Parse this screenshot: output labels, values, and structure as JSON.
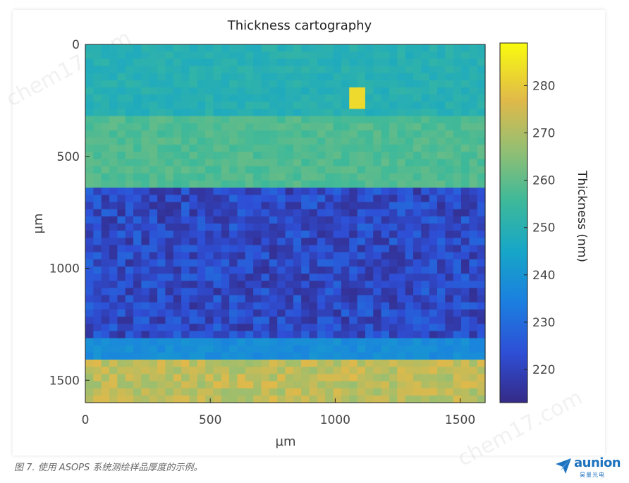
{
  "chart_data": {
    "type": "heatmap",
    "title": "Thickness cartography",
    "xlabel": "µm",
    "ylabel": "µm",
    "xlim": [
      0,
      1600
    ],
    "ylim": [
      0,
      1600
    ],
    "x_ticks": [
      "0",
      "500",
      "1000",
      "1500"
    ],
    "y_ticks": [
      "0",
      "500",
      "1000",
      "1500"
    ],
    "colorbar": {
      "label": "Thickness (nm)",
      "range": [
        213,
        289
      ],
      "ticks": [
        "220",
        "230",
        "240",
        "250",
        "260",
        "270",
        "280"
      ],
      "colormap": "parula"
    },
    "regions": [
      {
        "y_range": [
          0,
          320
        ],
        "thickness_nm": 250
      },
      {
        "y_range": [
          320,
          640
        ],
        "thickness_nm": 258
      },
      {
        "y_range": [
          640,
          1300
        ],
        "thickness_nm": 222
      },
      {
        "y_range": [
          1300,
          1420
        ],
        "thickness_nm": 238
      },
      {
        "y_range": [
          1420,
          1600
        ],
        "thickness_nm": 272
      }
    ],
    "spots": [
      {
        "x": 1090,
        "y": 240,
        "thickness_nm": 283
      }
    ]
  },
  "caption": "图 7. 使用 ASOPS 系统测绘样品厚度的示例。",
  "logo": {
    "name": "aunion",
    "sub": "昊量光电"
  },
  "watermark": "chem17.com"
}
